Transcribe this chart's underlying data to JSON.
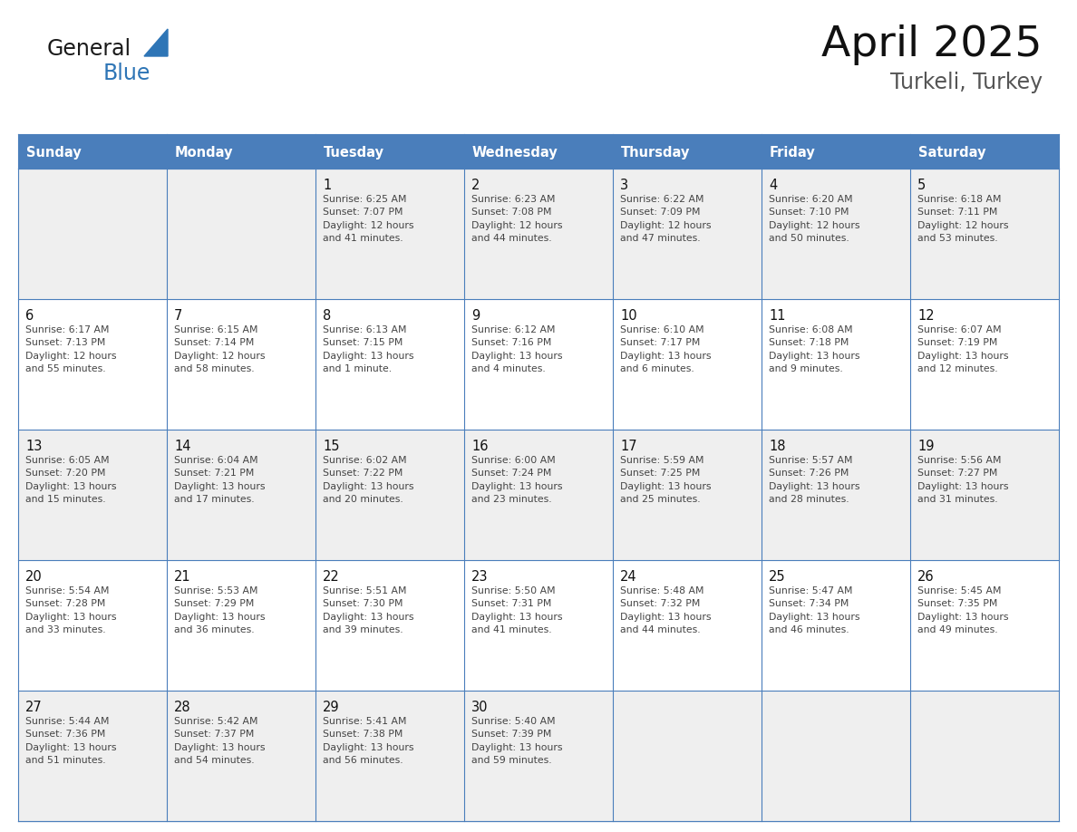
{
  "title": "April 2025",
  "subtitle": "Turkeli, Turkey",
  "header_bg": "#4A7EBB",
  "header_text_color": "#FFFFFF",
  "cell_bg_light": "#EFEFEF",
  "cell_bg_white": "#FFFFFF",
  "day_names": [
    "Sunday",
    "Monday",
    "Tuesday",
    "Wednesday",
    "Thursday",
    "Friday",
    "Saturday"
  ],
  "weeks": [
    [
      {
        "day": "",
        "info": ""
      },
      {
        "day": "",
        "info": ""
      },
      {
        "day": "1",
        "info": "Sunrise: 6:25 AM\nSunset: 7:07 PM\nDaylight: 12 hours\nand 41 minutes."
      },
      {
        "day": "2",
        "info": "Sunrise: 6:23 AM\nSunset: 7:08 PM\nDaylight: 12 hours\nand 44 minutes."
      },
      {
        "day": "3",
        "info": "Sunrise: 6:22 AM\nSunset: 7:09 PM\nDaylight: 12 hours\nand 47 minutes."
      },
      {
        "day": "4",
        "info": "Sunrise: 6:20 AM\nSunset: 7:10 PM\nDaylight: 12 hours\nand 50 minutes."
      },
      {
        "day": "5",
        "info": "Sunrise: 6:18 AM\nSunset: 7:11 PM\nDaylight: 12 hours\nand 53 minutes."
      }
    ],
    [
      {
        "day": "6",
        "info": "Sunrise: 6:17 AM\nSunset: 7:13 PM\nDaylight: 12 hours\nand 55 minutes."
      },
      {
        "day": "7",
        "info": "Sunrise: 6:15 AM\nSunset: 7:14 PM\nDaylight: 12 hours\nand 58 minutes."
      },
      {
        "day": "8",
        "info": "Sunrise: 6:13 AM\nSunset: 7:15 PM\nDaylight: 13 hours\nand 1 minute."
      },
      {
        "day": "9",
        "info": "Sunrise: 6:12 AM\nSunset: 7:16 PM\nDaylight: 13 hours\nand 4 minutes."
      },
      {
        "day": "10",
        "info": "Sunrise: 6:10 AM\nSunset: 7:17 PM\nDaylight: 13 hours\nand 6 minutes."
      },
      {
        "day": "11",
        "info": "Sunrise: 6:08 AM\nSunset: 7:18 PM\nDaylight: 13 hours\nand 9 minutes."
      },
      {
        "day": "12",
        "info": "Sunrise: 6:07 AM\nSunset: 7:19 PM\nDaylight: 13 hours\nand 12 minutes."
      }
    ],
    [
      {
        "day": "13",
        "info": "Sunrise: 6:05 AM\nSunset: 7:20 PM\nDaylight: 13 hours\nand 15 minutes."
      },
      {
        "day": "14",
        "info": "Sunrise: 6:04 AM\nSunset: 7:21 PM\nDaylight: 13 hours\nand 17 minutes."
      },
      {
        "day": "15",
        "info": "Sunrise: 6:02 AM\nSunset: 7:22 PM\nDaylight: 13 hours\nand 20 minutes."
      },
      {
        "day": "16",
        "info": "Sunrise: 6:00 AM\nSunset: 7:24 PM\nDaylight: 13 hours\nand 23 minutes."
      },
      {
        "day": "17",
        "info": "Sunrise: 5:59 AM\nSunset: 7:25 PM\nDaylight: 13 hours\nand 25 minutes."
      },
      {
        "day": "18",
        "info": "Sunrise: 5:57 AM\nSunset: 7:26 PM\nDaylight: 13 hours\nand 28 minutes."
      },
      {
        "day": "19",
        "info": "Sunrise: 5:56 AM\nSunset: 7:27 PM\nDaylight: 13 hours\nand 31 minutes."
      }
    ],
    [
      {
        "day": "20",
        "info": "Sunrise: 5:54 AM\nSunset: 7:28 PM\nDaylight: 13 hours\nand 33 minutes."
      },
      {
        "day": "21",
        "info": "Sunrise: 5:53 AM\nSunset: 7:29 PM\nDaylight: 13 hours\nand 36 minutes."
      },
      {
        "day": "22",
        "info": "Sunrise: 5:51 AM\nSunset: 7:30 PM\nDaylight: 13 hours\nand 39 minutes."
      },
      {
        "day": "23",
        "info": "Sunrise: 5:50 AM\nSunset: 7:31 PM\nDaylight: 13 hours\nand 41 minutes."
      },
      {
        "day": "24",
        "info": "Sunrise: 5:48 AM\nSunset: 7:32 PM\nDaylight: 13 hours\nand 44 minutes."
      },
      {
        "day": "25",
        "info": "Sunrise: 5:47 AM\nSunset: 7:34 PM\nDaylight: 13 hours\nand 46 minutes."
      },
      {
        "day": "26",
        "info": "Sunrise: 5:45 AM\nSunset: 7:35 PM\nDaylight: 13 hours\nand 49 minutes."
      }
    ],
    [
      {
        "day": "27",
        "info": "Sunrise: 5:44 AM\nSunset: 7:36 PM\nDaylight: 13 hours\nand 51 minutes."
      },
      {
        "day": "28",
        "info": "Sunrise: 5:42 AM\nSunset: 7:37 PM\nDaylight: 13 hours\nand 54 minutes."
      },
      {
        "day": "29",
        "info": "Sunrise: 5:41 AM\nSunset: 7:38 PM\nDaylight: 13 hours\nand 56 minutes."
      },
      {
        "day": "30",
        "info": "Sunrise: 5:40 AM\nSunset: 7:39 PM\nDaylight: 13 hours\nand 59 minutes."
      },
      {
        "day": "",
        "info": ""
      },
      {
        "day": "",
        "info": ""
      },
      {
        "day": "",
        "info": ""
      }
    ]
  ],
  "logo_color_general": "#1A1A1A",
  "logo_color_blue": "#2E75B6",
  "logo_triangle_color": "#2E75B6",
  "grid_line_color": "#4A7EBB",
  "cell_text_color": "#444444",
  "day_number_color": "#111111",
  "title_color": "#111111",
  "subtitle_color": "#555555",
  "fig_width": 11.88,
  "fig_height": 9.18,
  "dpi": 100
}
